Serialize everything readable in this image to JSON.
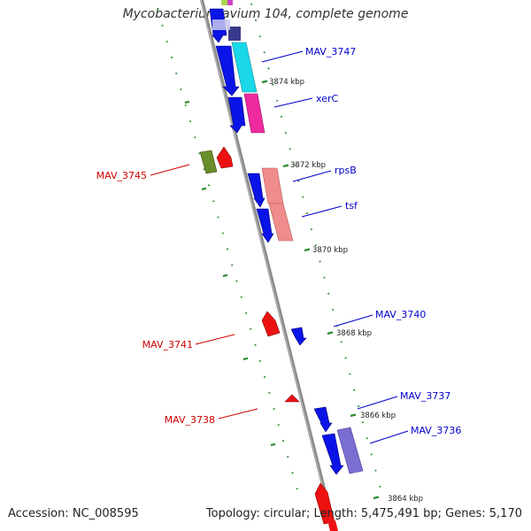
{
  "title": "Mycobacterium avium 104, complete genome",
  "accession": "Accession: NC_008595",
  "summary": "Topology: circular; Length: 5,475,491 bp; Genes: 5,170",
  "colors": {
    "backbone": "#8c8c8c",
    "tick": "#2e8b2e",
    "forward_label": "#0000cc",
    "reverse_label": "#cc0000",
    "forward_gene": "#0a12e0",
    "reverse_gene": "#ee1111"
  },
  "scale_labels": [
    "3874 kbp",
    "3872 kbp",
    "3870 kbp",
    "3868 kbp",
    "3866 kbp",
    "3864 kbp"
  ],
  "gene_labels": [
    {
      "text": "MAV_3747",
      "strand": "forward"
    },
    {
      "text": "xerC",
      "strand": "forward"
    },
    {
      "text": "MAV_3745",
      "strand": "reverse"
    },
    {
      "text": "rpsB",
      "strand": "forward"
    },
    {
      "text": "tsf",
      "strand": "forward"
    },
    {
      "text": "MAV_3740",
      "strand": "forward"
    },
    {
      "text": "MAV_3741",
      "strand": "reverse"
    },
    {
      "text": "MAV_3737",
      "strand": "forward"
    },
    {
      "text": "MAV_3738",
      "strand": "reverse"
    },
    {
      "text": "MAV_3736",
      "strand": "forward"
    }
  ]
}
